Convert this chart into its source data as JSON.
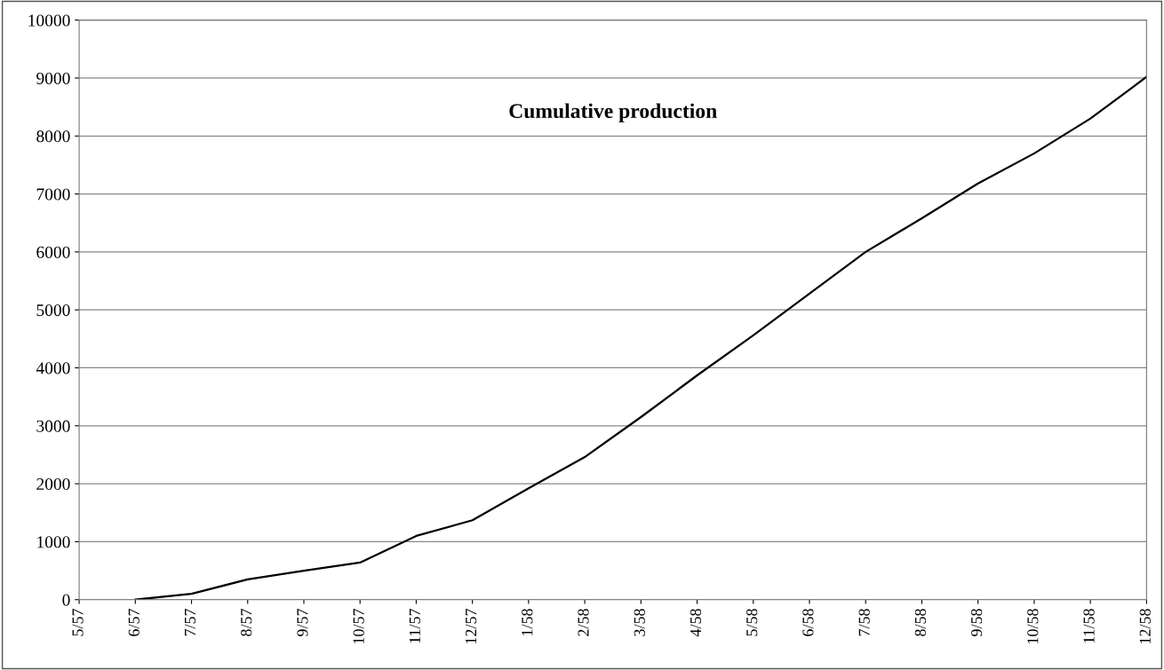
{
  "chart_data": {
    "type": "line",
    "title": "Cumulative production",
    "categories": [
      "5/57",
      "6/57",
      "7/57",
      "8/57",
      "9/57",
      "10/57",
      "11/57",
      "12/57",
      "1/58",
      "2/58",
      "3/58",
      "4/58",
      "5/58",
      "6/58",
      "7/58",
      "8/58",
      "9/58",
      "10/58",
      "11/58",
      "12/58"
    ],
    "series": [
      {
        "color": "#000000",
        "values": [
          null,
          0,
          100,
          350,
          500,
          640,
          1100,
          1370,
          1920,
          2460,
          3150,
          3870,
          4560,
          5280,
          6000,
          6580,
          7180,
          7700,
          8300,
          9020
        ]
      }
    ],
    "ylim": [
      0,
      10000
    ],
    "yticks": [
      0,
      1000,
      2000,
      3000,
      4000,
      5000,
      6000,
      7000,
      8000,
      9000,
      10000
    ],
    "grid": "y",
    "marker": "none",
    "line_style": "solid",
    "legend": false
  }
}
